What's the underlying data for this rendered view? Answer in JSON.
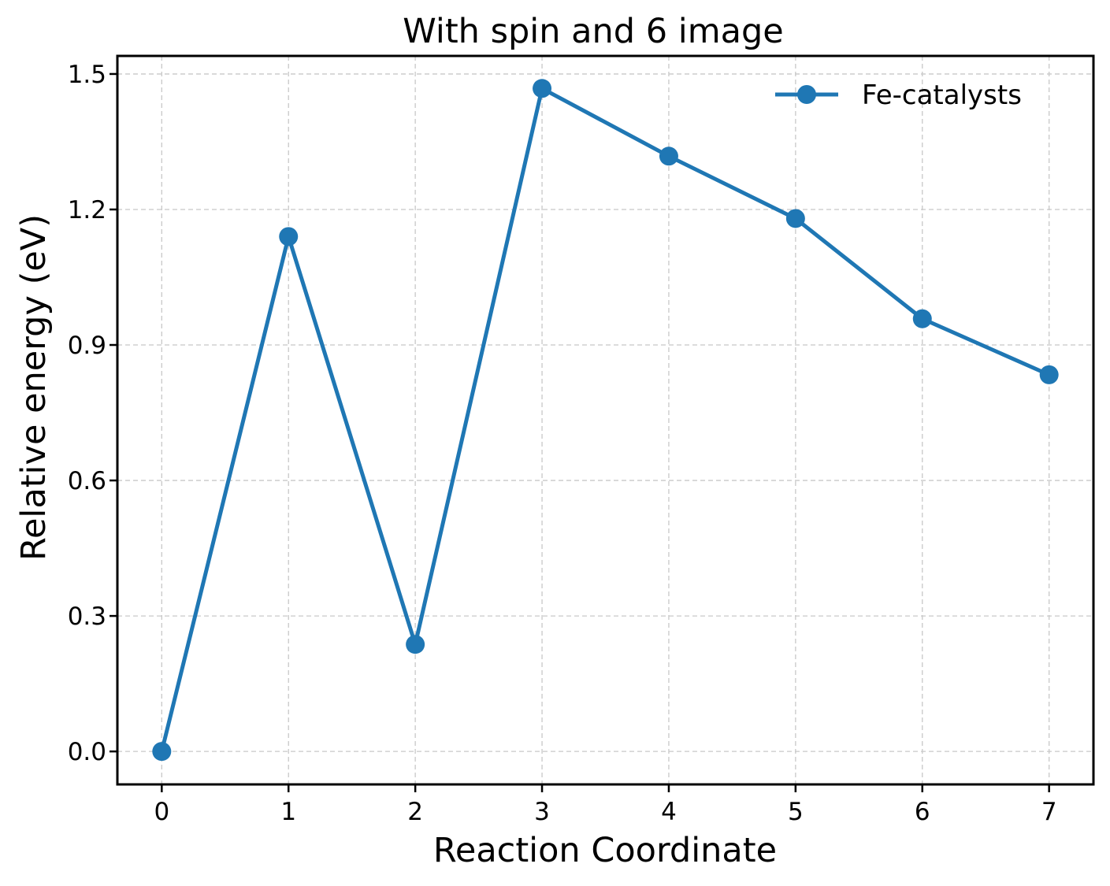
{
  "chart_data": {
    "type": "line",
    "title": "With spin and 6 image",
    "xlabel": "Reaction Coordinate",
    "ylabel": "Relative energy (eV)",
    "x": [
      0,
      1,
      2,
      3,
      4,
      5,
      6,
      7
    ],
    "series": [
      {
        "name": "Fe-catalysts",
        "color": "#1f77b4",
        "marker": "circle",
        "values": [
          0.0,
          1.14,
          0.237,
          1.468,
          1.318,
          1.18,
          0.958,
          0.834
        ]
      }
    ],
    "xlim": [
      -0.35,
      7.35
    ],
    "ylim": [
      -0.073,
      1.54
    ],
    "xticks": [
      "0",
      "1",
      "2",
      "3",
      "4",
      "5",
      "6",
      "7"
    ],
    "yticks": [
      "0.0",
      "0.3",
      "0.6",
      "0.9",
      "1.2",
      "1.5"
    ],
    "ytick_values": [
      0.0,
      0.3,
      0.6,
      0.9,
      1.2,
      1.5
    ],
    "grid": true,
    "legend_position": "top-right"
  }
}
